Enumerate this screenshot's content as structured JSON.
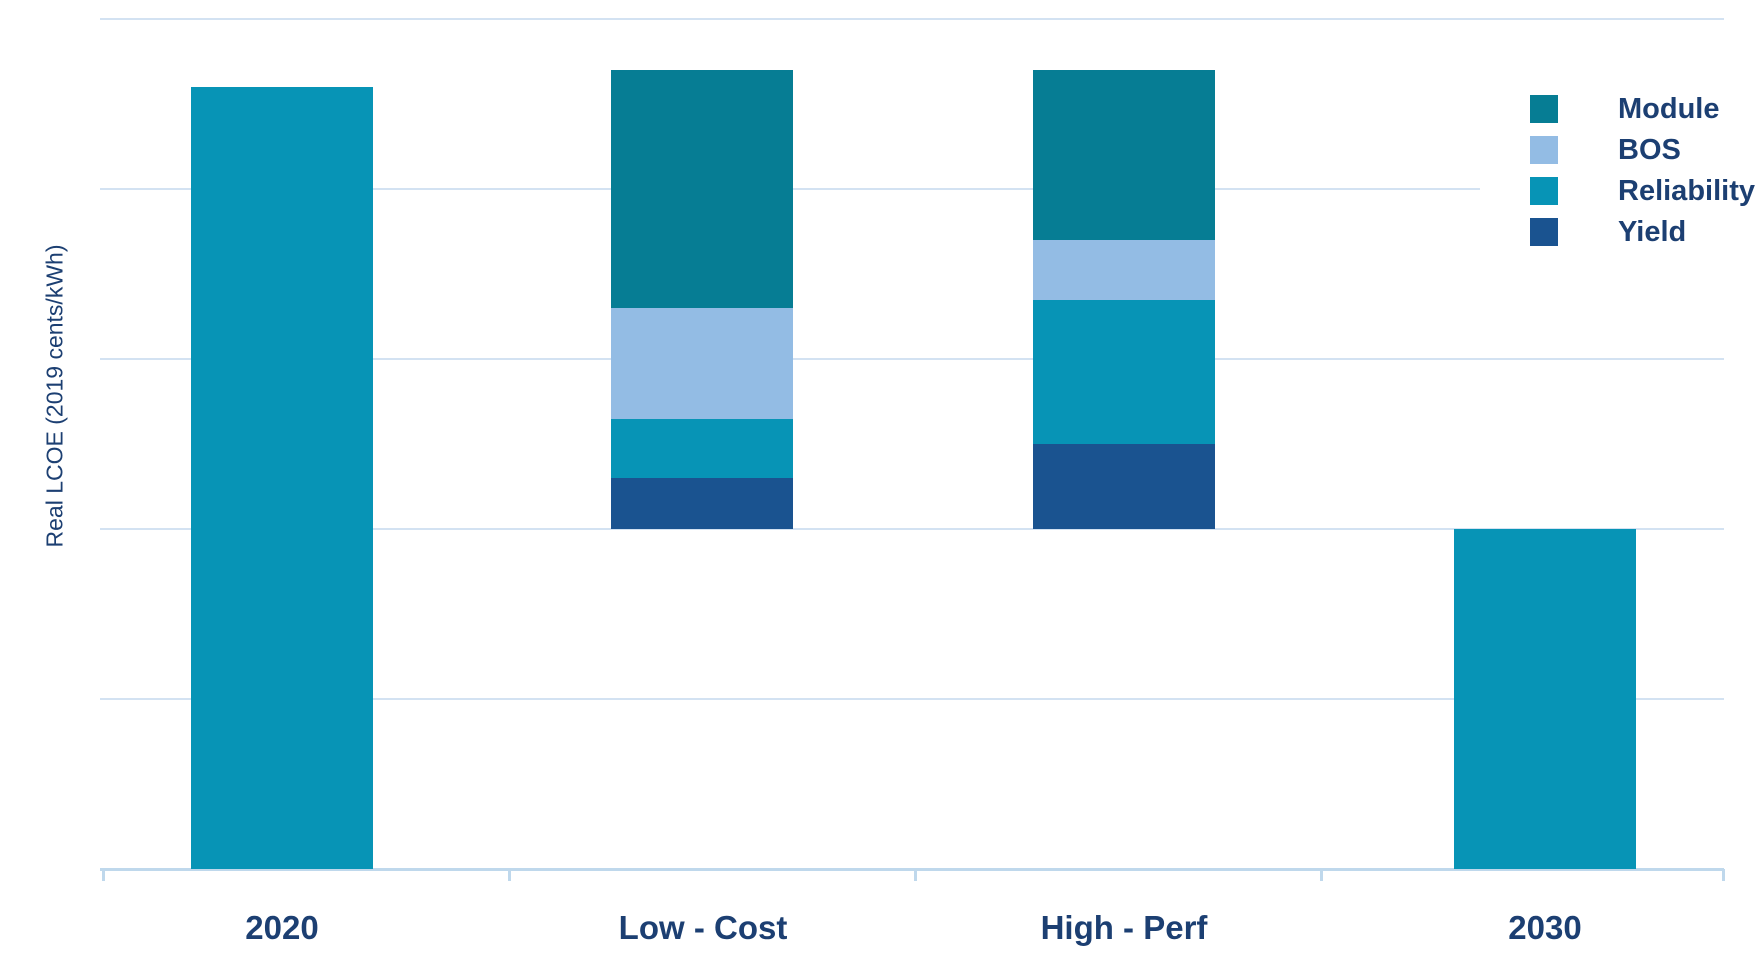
{
  "colors": {
    "module": "#067d94",
    "bos": "#93bce4",
    "reliability": "#0794b6",
    "yield": "#1a5390",
    "text": "#1c3f72",
    "gridline": "#d3e2f2",
    "axis": "#bfd8ec"
  },
  "legend": {
    "position": "top-right",
    "items": [
      {
        "key": "module",
        "label": "Module"
      },
      {
        "key": "bos",
        "label": "BOS"
      },
      {
        "key": "reliability",
        "label": "Reliability"
      },
      {
        "key": "yield",
        "label": "Yield"
      }
    ]
  },
  "chart_data": {
    "type": "bar",
    "stacked": true,
    "title": "",
    "ylabel": "Real LCOE (2019 cents/kWh)",
    "xlabel": "",
    "ylim": [
      0,
      5
    ],
    "grid_step": 1,
    "y_tick_labels": "none",
    "grid": "horizontal",
    "legend_position": "top-right",
    "categories": [
      "2020",
      "Low - Cost",
      "High - Perf",
      "2030"
    ],
    "bars": [
      {
        "category": "2020",
        "base": 0,
        "total": 4.6,
        "segments": [
          {
            "key": "lcoe_2020",
            "color_key": "reliability",
            "value": 4.6
          }
        ]
      },
      {
        "category": "Low - Cost",
        "base": 2.0,
        "total": 4.7,
        "segments": [
          {
            "key": "yield",
            "value": 0.3
          },
          {
            "key": "reliability",
            "value": 0.35
          },
          {
            "key": "bos",
            "value": 0.65
          },
          {
            "key": "module",
            "value": 1.4
          }
        ]
      },
      {
        "category": "High - Perf",
        "base": 2.0,
        "total": 4.7,
        "segments": [
          {
            "key": "yield",
            "value": 0.5
          },
          {
            "key": "reliability",
            "value": 0.85
          },
          {
            "key": "bos",
            "value": 0.35
          },
          {
            "key": "module",
            "value": 1.0
          }
        ]
      },
      {
        "category": "2030",
        "base": 0,
        "total": 2.0,
        "segments": [
          {
            "key": "lcoe_2030",
            "color_key": "reliability",
            "value": 2.0
          }
        ]
      }
    ]
  }
}
